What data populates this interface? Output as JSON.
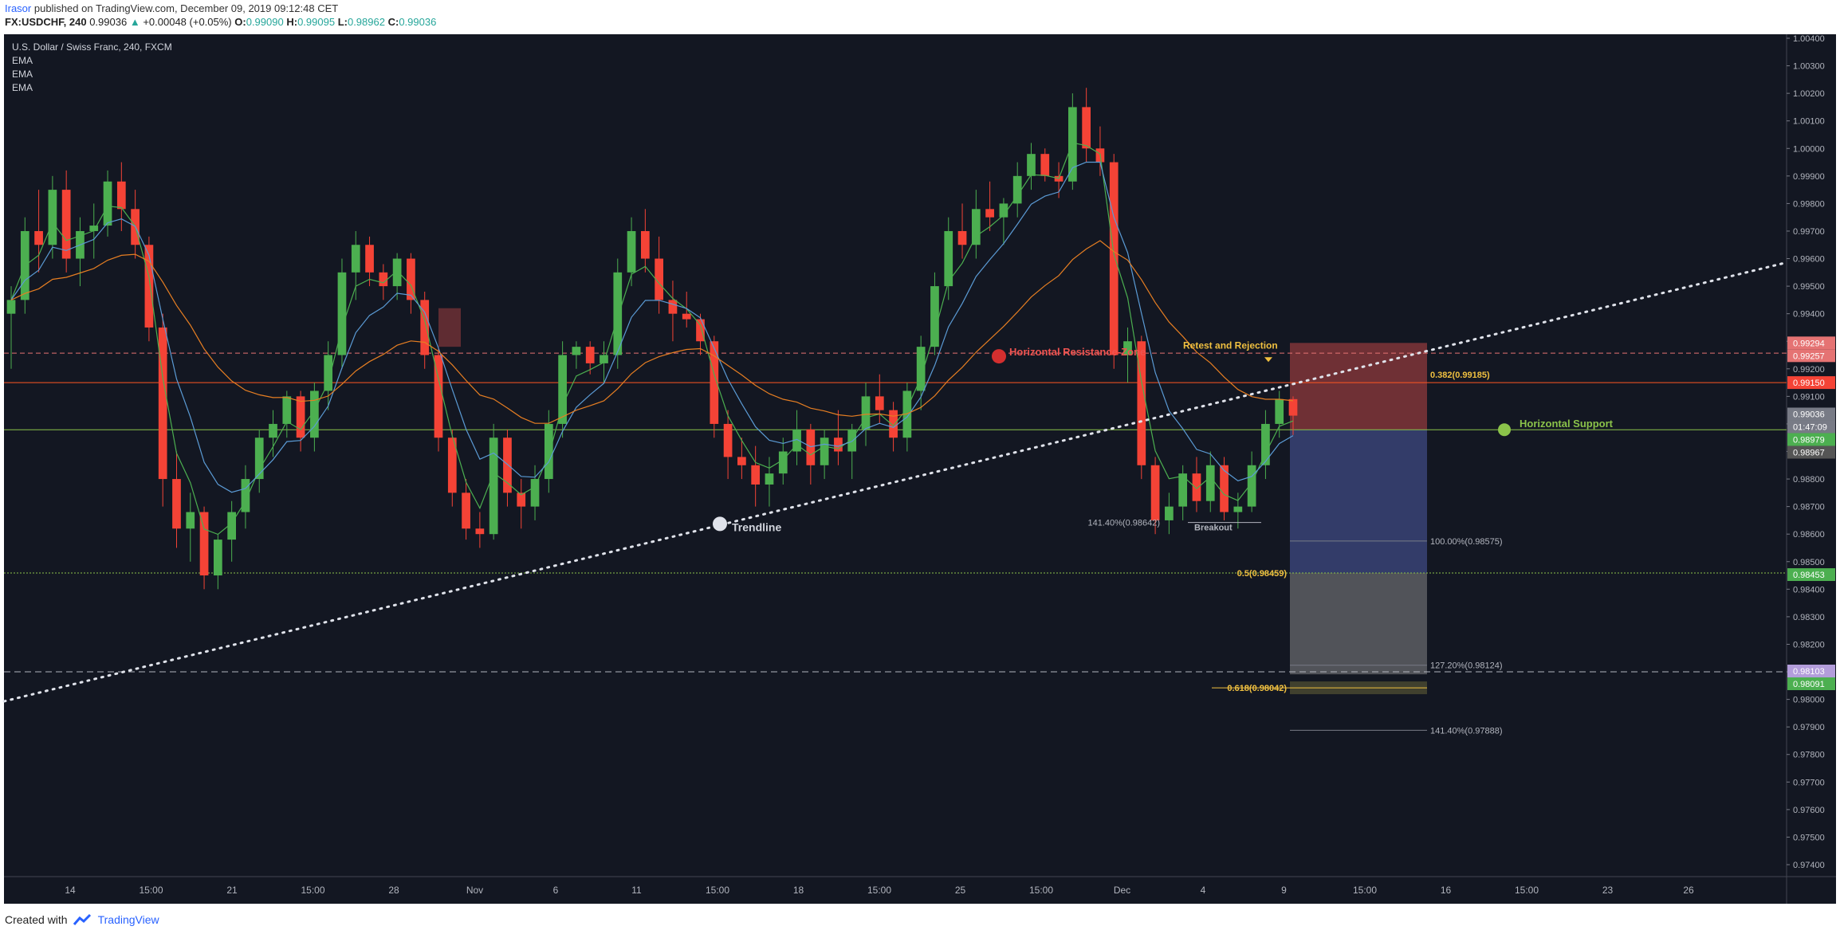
{
  "header": {
    "author": "Irasor",
    "published": "published on TradingView.com, December 09, 2019 09:12:48 CET",
    "symbol": "FX:USDCHF, 240",
    "price": "0.99036",
    "change": "+0.00048 (+0.05%)",
    "o_label": "O:",
    "o": "0.99090",
    "h_label": "H:",
    "h": "0.99095",
    "l_label": "L:",
    "l": "0.98962",
    "c_label": "C:",
    "c": "0.99036"
  },
  "legend": {
    "title": "U.S. Dollar / Swiss Franc, 240, FXCM",
    "indicators": [
      "EMA",
      "EMA",
      "EMA"
    ]
  },
  "footer": {
    "created": "Created with",
    "brand": "TradingView"
  },
  "colors": {
    "background": "#131722",
    "up": "#4caf50",
    "down": "#f44336",
    "ema_fast": "#4caf50",
    "ema_mid": "#5b9bd5",
    "ema_slow": "#e67e22",
    "fib": "#f0c040",
    "support": "#8bc34a",
    "resistance": "#ff5722"
  },
  "chart_data": {
    "type": "candlestick",
    "timeframe": "240",
    "ylim": [
      0.974,
      1.004
    ],
    "y_ticks": [
      "1.00400",
      "1.00300",
      "1.00200",
      "1.00100",
      "1.00000",
      "0.99900",
      "0.99800",
      "0.99700",
      "0.99600",
      "0.99500",
      "0.99400",
      "0.99300",
      "0.99200",
      "0.99100",
      "0.99000",
      "0.98900",
      "0.98800",
      "0.98700",
      "0.98600",
      "0.98500",
      "0.98400",
      "0.98300",
      "0.98200",
      "0.98100",
      "0.98000",
      "0.97900",
      "0.97800",
      "0.97700",
      "0.97600",
      "0.97500",
      "0.97400"
    ],
    "x_ticks": [
      "14",
      "15:00",
      "21",
      "15:00",
      "28",
      "Nov",
      "6",
      "11",
      "15:00",
      "18",
      "15:00",
      "25",
      "15:00",
      "Dec",
      "4",
      "9",
      "15:00",
      "16",
      "15:00",
      "23",
      "26"
    ],
    "price_labels": [
      {
        "value": "0.99294",
        "color": "#e57373"
      },
      {
        "value": "0.99257",
        "color": "#e57373"
      },
      {
        "value": "0.99150",
        "color": "#f44336"
      },
      {
        "value": "0.99036",
        "color": "#787b86"
      },
      {
        "value": "01:47:09",
        "color": "#787b86"
      },
      {
        "value": "0.98979",
        "color": "#4caf50"
      },
      {
        "value": "0.98967",
        "color": "#555555"
      },
      {
        "value": "0.98453",
        "color": "#4caf50"
      },
      {
        "value": "0.98103",
        "color": "#b39ddb"
      },
      {
        "value": "0.98091",
        "color": "#4caf50"
      }
    ],
    "levels": {
      "resistance_zone_top": 0.99257,
      "resistance_line": 0.9915,
      "horizontal_support": 0.98979,
      "fib_05": 0.98459,
      "fib_0618": 0.98042,
      "dashed_low": 0.981
    },
    "trendline": {
      "start": [
        0,
        0.97993
      ],
      "end": [
        1,
        0.99586
      ]
    },
    "position": {
      "entry": 0.98979,
      "stop": 0.99294,
      "target": 0.98091
    },
    "annotations": [
      {
        "text": "Horizontal Resistance-Zone",
        "color": "#ef5350"
      },
      {
        "text": "Retest and Rejection",
        "color": "#f0c040"
      },
      {
        "text": "Horizontal Support",
        "color": "#8bc34a"
      },
      {
        "text": "Trendline",
        "color": "#d1d4dc"
      },
      {
        "text": "Breakout",
        "color": "#b2b5be"
      },
      {
        "text": "0.382(0.99185)",
        "color": "#f0c040"
      },
      {
        "text": "0.5(0.98459)",
        "color": "#f0c040"
      },
      {
        "text": "0.618(0.98042)",
        "color": "#f0c040"
      },
      {
        "text": "141.40%(0.98642)",
        "color": "#b2b5be"
      },
      {
        "text": "100.00%(0.98575)",
        "color": "#b2b5be"
      },
      {
        "text": "127.20%(0.98124)",
        "color": "#b2b5be"
      },
      {
        "text": "141.40%(0.97888)",
        "color": "#b2b5be"
      }
    ],
    "candles": [
      [
        0.994,
        0.995,
        0.992,
        0.9945
      ],
      [
        0.9945,
        0.9975,
        0.994,
        0.997
      ],
      [
        0.997,
        0.9985,
        0.9955,
        0.9965
      ],
      [
        0.9965,
        0.999,
        0.996,
        0.9985
      ],
      [
        0.9985,
        0.9992,
        0.9955,
        0.996
      ],
      [
        0.996,
        0.9975,
        0.995,
        0.997
      ],
      [
        0.997,
        0.998,
        0.996,
        0.9972
      ],
      [
        0.9972,
        0.9992,
        0.9968,
        0.9988
      ],
      [
        0.9988,
        0.9995,
        0.997,
        0.9978
      ],
      [
        0.9978,
        0.9985,
        0.996,
        0.9965
      ],
      [
        0.9965,
        0.9968,
        0.993,
        0.9935
      ],
      [
        0.9935,
        0.994,
        0.987,
        0.988
      ],
      [
        0.988,
        0.989,
        0.9855,
        0.9862
      ],
      [
        0.9862,
        0.9875,
        0.985,
        0.9868
      ],
      [
        0.9868,
        0.987,
        0.984,
        0.9845
      ],
      [
        0.9845,
        0.986,
        0.984,
        0.9858
      ],
      [
        0.9858,
        0.9872,
        0.985,
        0.9868
      ],
      [
        0.9868,
        0.9885,
        0.9862,
        0.988
      ],
      [
        0.988,
        0.9898,
        0.9875,
        0.9895
      ],
      [
        0.9895,
        0.9905,
        0.9888,
        0.99
      ],
      [
        0.99,
        0.9912,
        0.9895,
        0.991
      ],
      [
        0.991,
        0.9912,
        0.989,
        0.9895
      ],
      [
        0.9895,
        0.9915,
        0.989,
        0.9912
      ],
      [
        0.9912,
        0.993,
        0.9905,
        0.9925
      ],
      [
        0.9925,
        0.996,
        0.992,
        0.9955
      ],
      [
        0.9955,
        0.997,
        0.9945,
        0.9965
      ],
      [
        0.9965,
        0.9968,
        0.995,
        0.9955
      ],
      [
        0.9955,
        0.9958,
        0.9945,
        0.995
      ],
      [
        0.995,
        0.9962,
        0.9945,
        0.996
      ],
      [
        0.996,
        0.9962,
        0.994,
        0.9945
      ],
      [
        0.9945,
        0.9948,
        0.992,
        0.9925
      ],
      [
        0.9925,
        0.9928,
        0.989,
        0.9895
      ],
      [
        0.9895,
        0.9898,
        0.987,
        0.9875
      ],
      [
        0.9875,
        0.988,
        0.9858,
        0.9862
      ],
      [
        0.9862,
        0.9868,
        0.9855,
        0.986
      ],
      [
        0.986,
        0.99,
        0.9858,
        0.9895
      ],
      [
        0.9895,
        0.9898,
        0.987,
        0.9875
      ],
      [
        0.9875,
        0.988,
        0.9862,
        0.987
      ],
      [
        0.987,
        0.9885,
        0.9865,
        0.988
      ],
      [
        0.988,
        0.9905,
        0.9875,
        0.99
      ],
      [
        0.99,
        0.993,
        0.9895,
        0.9925
      ],
      [
        0.9925,
        0.993,
        0.992,
        0.9928
      ],
      [
        0.9928,
        0.993,
        0.9918,
        0.9922
      ],
      [
        0.9922,
        0.993,
        0.9915,
        0.9925
      ],
      [
        0.9925,
        0.996,
        0.992,
        0.9955
      ],
      [
        0.9955,
        0.9975,
        0.995,
        0.997
      ],
      [
        0.997,
        0.9978,
        0.9955,
        0.996
      ],
      [
        0.996,
        0.9968,
        0.994,
        0.9945
      ],
      [
        0.9945,
        0.9952,
        0.993,
        0.994
      ],
      [
        0.994,
        0.9948,
        0.9935,
        0.9938
      ],
      [
        0.9938,
        0.994,
        0.9925,
        0.993
      ],
      [
        0.993,
        0.9932,
        0.9895,
        0.99
      ],
      [
        0.99,
        0.9905,
        0.988,
        0.9888
      ],
      [
        0.9888,
        0.9895,
        0.988,
        0.9885
      ],
      [
        0.9885,
        0.9892,
        0.987,
        0.9878
      ],
      [
        0.9878,
        0.9888,
        0.987,
        0.9882
      ],
      [
        0.9882,
        0.9895,
        0.9878,
        0.989
      ],
      [
        0.989,
        0.9905,
        0.9885,
        0.9898
      ],
      [
        0.9898,
        0.99,
        0.9878,
        0.9885
      ],
      [
        0.9885,
        0.9898,
        0.988,
        0.9895
      ],
      [
        0.9895,
        0.9905,
        0.9885,
        0.989
      ],
      [
        0.989,
        0.99,
        0.988,
        0.9898
      ],
      [
        0.9898,
        0.9915,
        0.9892,
        0.991
      ],
      [
        0.991,
        0.9918,
        0.99,
        0.9905
      ],
      [
        0.9905,
        0.9908,
        0.989,
        0.9895
      ],
      [
        0.9895,
        0.9915,
        0.989,
        0.9912
      ],
      [
        0.9912,
        0.9932,
        0.9905,
        0.9928
      ],
      [
        0.9928,
        0.9955,
        0.9925,
        0.995
      ],
      [
        0.995,
        0.9975,
        0.9945,
        0.997
      ],
      [
        0.997,
        0.998,
        0.996,
        0.9965
      ],
      [
        0.9965,
        0.9985,
        0.996,
        0.9978
      ],
      [
        0.9978,
        0.9988,
        0.997,
        0.9975
      ],
      [
        0.9975,
        0.9982,
        0.9965,
        0.998
      ],
      [
        0.998,
        0.9995,
        0.9975,
        0.999
      ],
      [
        0.999,
        1.0002,
        0.9985,
        0.9998
      ],
      [
        0.9998,
        1.0,
        0.9988,
        0.999
      ],
      [
        0.999,
        0.9995,
        0.9982,
        0.9988
      ],
      [
        0.9988,
        1.002,
        0.9985,
        1.0015
      ],
      [
        1.0015,
        1.0022,
        0.9995,
        1.0
      ],
      [
        1.0,
        1.0008,
        0.999,
        0.9995
      ],
      [
        0.9995,
        0.9998,
        0.992,
        0.9925
      ],
      [
        0.9925,
        0.9935,
        0.9915,
        0.993
      ],
      [
        0.993,
        0.9932,
        0.988,
        0.9885
      ],
      [
        0.9885,
        0.9888,
        0.986,
        0.9865
      ],
      [
        0.9865,
        0.9875,
        0.986,
        0.987
      ],
      [
        0.987,
        0.9885,
        0.9865,
        0.9882
      ],
      [
        0.9882,
        0.9888,
        0.9868,
        0.9872
      ],
      [
        0.9872,
        0.989,
        0.9868,
        0.9885
      ],
      [
        0.9885,
        0.9888,
        0.9865,
        0.9868
      ],
      [
        0.9868,
        0.9875,
        0.9862,
        0.987
      ],
      [
        0.987,
        0.989,
        0.9868,
        0.9885
      ],
      [
        0.9885,
        0.9905,
        0.988,
        0.99
      ],
      [
        0.99,
        0.9912,
        0.9895,
        0.9909
      ],
      [
        0.9909,
        0.991,
        0.9896,
        0.9903
      ]
    ]
  }
}
